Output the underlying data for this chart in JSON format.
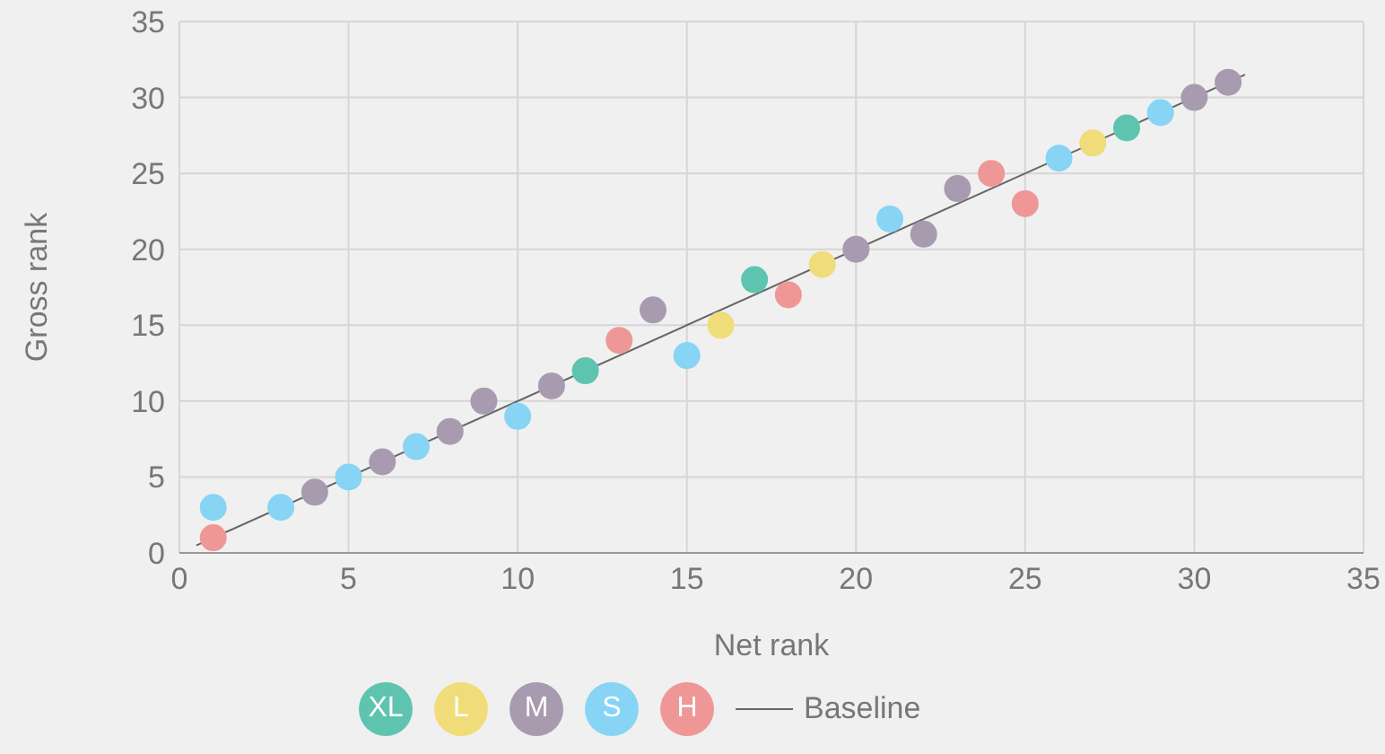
{
  "chart_data": {
    "type": "scatter",
    "xlabel": "Net rank",
    "ylabel": "Gross rank",
    "xlim": [
      0,
      35
    ],
    "ylim": [
      0,
      35
    ],
    "xticks": [
      0,
      5,
      10,
      15,
      20,
      25,
      30,
      35
    ],
    "yticks": [
      0,
      5,
      10,
      15,
      20,
      25,
      30,
      35
    ],
    "grid": true,
    "legend": "bottom",
    "marker": "circle",
    "series": [
      {
        "name": "XL",
        "color": "#5ec4b0",
        "x": [
          12,
          17,
          28
        ],
        "values": [
          12,
          18,
          28
        ]
      },
      {
        "name": "L",
        "color": "#f0dc78",
        "x": [
          16,
          19,
          27
        ],
        "values": [
          15,
          19,
          27
        ]
      },
      {
        "name": "M",
        "color": "#a89bb0",
        "x": [
          4,
          6,
          8,
          9,
          11,
          14,
          20,
          22,
          23,
          30,
          31
        ],
        "values": [
          4,
          6,
          8,
          10,
          11,
          16,
          20,
          21,
          24,
          30,
          31
        ]
      },
      {
        "name": "S",
        "color": "#87d4f5",
        "x": [
          1,
          3,
          5,
          7,
          10,
          15,
          21,
          26,
          29
        ],
        "values": [
          3,
          3,
          5,
          7,
          9,
          13,
          22,
          26,
          29
        ]
      },
      {
        "name": "H",
        "color": "#ef9797",
        "x": [
          1,
          13,
          18,
          24,
          25
        ],
        "values": [
          1,
          14,
          17,
          25,
          23
        ]
      },
      {
        "name": "Baseline",
        "type": "line",
        "color": "#666666",
        "x": [
          0.5,
          31.5
        ],
        "values": [
          0.5,
          31.5
        ],
        "marker": "none"
      }
    ]
  }
}
